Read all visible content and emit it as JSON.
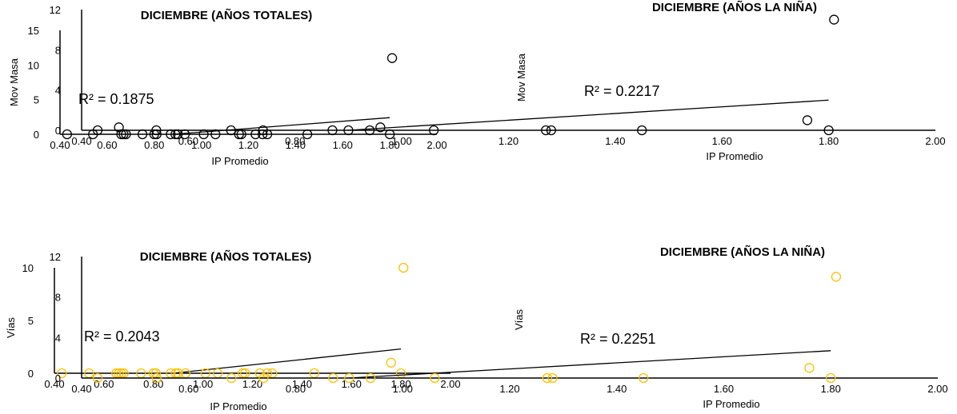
{
  "chart_data": [
    {
      "type": "scatter",
      "title": "DICIEMBRE (AÑOS TOTALES)",
      "xlabel": "IP Promedio",
      "ylabel": "Mov Masa",
      "xlim": [
        0.4,
        2.0
      ],
      "ylim": [
        0,
        15
      ],
      "xticks": [
        "0.40",
        "0.60",
        "0.80",
        "1.00",
        "1.20",
        "1.40",
        "1.60",
        "1.80",
        "2.00"
      ],
      "yticks": [
        "0",
        "5",
        "10",
        "15"
      ],
      "r2_label": "R² = 0.1875",
      "trendline": {
        "x": [
          0.88,
          1.8
        ],
        "y": [
          0.0,
          2.4
        ]
      },
      "marker_color": "#000000",
      "series": [
        {
          "x": [
            0.43,
            0.54,
            0.65,
            0.66,
            0.67,
            0.68,
            0.75,
            0.8,
            0.81,
            0.87,
            0.89,
            0.9,
            0.93,
            1.01,
            1.06,
            1.16,
            1.17,
            1.23,
            1.26,
            1.28,
            1.45,
            1.76,
            1.8,
            1.81
          ],
          "y": [
            0,
            0,
            1,
            0,
            0,
            0,
            0,
            0,
            0,
            0,
            0,
            0,
            0,
            0,
            0,
            0,
            0,
            0,
            0,
            0,
            0,
            1,
            0,
            11
          ]
        }
      ]
    },
    {
      "type": "scatter",
      "title": "DICIEMBRE (AÑOS LA NIÑA)",
      "xlabel": "IP Promedio",
      "ylabel": "Mov Masa",
      "xlim": [
        0.4,
        2.0
      ],
      "ylim": [
        0,
        12
      ],
      "xticks": [
        "0.40",
        "0.60",
        "0.80",
        "1.00",
        "1.20",
        "1.40",
        "1.60",
        "1.80",
        "2.00"
      ],
      "yticks": [
        "0",
        "4",
        "8",
        "12"
      ],
      "r2_label": "R² = 0.2217",
      "trendline": {
        "x": [
          0.9,
          1.8
        ],
        "y": [
          0.0,
          3.0
        ]
      },
      "marker_color": "#000000",
      "series": [
        {
          "x": [
            0.43,
            0.54,
            0.68,
            0.74,
            0.87,
            0.9,
            0.94,
            1.06,
            1.27,
            1.28,
            1.45,
            1.76,
            1.8,
            1.81
          ],
          "y": [
            0,
            0,
            0,
            0,
            0,
            0,
            0,
            0,
            0,
            0,
            0,
            1,
            0,
            11
          ]
        }
      ]
    },
    {
      "type": "scatter",
      "title": "DICIEMBRE (AÑOS TOTALES)",
      "xlabel": "IP Promedio",
      "ylabel": "Vías",
      "xlim": [
        0.4,
        2.0
      ],
      "ylim": [
        0,
        10
      ],
      "xticks": [
        "0.40",
        "0.60",
        "0.80",
        "1.00",
        "1.20",
        "1.40",
        "1.60",
        "1.80",
        "2.00"
      ],
      "yticks": [
        "0",
        "5",
        "10"
      ],
      "r2_label": "R² = 0.2043",
      "trendline": {
        "x": [
          0.88,
          1.8
        ],
        "y": [
          0.0,
          2.3
        ]
      },
      "marker_color": "#FFC000",
      "series": [
        {
          "x": [
            0.43,
            0.54,
            0.65,
            0.66,
            0.67,
            0.68,
            0.75,
            0.8,
            0.81,
            0.87,
            0.89,
            0.9,
            0.93,
            1.01,
            1.06,
            1.16,
            1.17,
            1.23,
            1.26,
            1.28,
            1.45,
            1.76,
            1.8,
            1.81
          ],
          "y": [
            0,
            0,
            0,
            0,
            0,
            0,
            0,
            0,
            0,
            0,
            0,
            0,
            0,
            0,
            0,
            0,
            0,
            0,
            0,
            0,
            0,
            1,
            0,
            10
          ]
        }
      ]
    },
    {
      "type": "scatter",
      "title": "DICIEMBRE (AÑOS LA NIÑA)",
      "xlabel": "IP Promedio",
      "ylabel": "Vías",
      "xlim": [
        0.4,
        2.0
      ],
      "ylim": [
        0,
        12
      ],
      "xticks": [
        "0.40",
        "0.60",
        "0.80",
        "1.00",
        "1.20",
        "1.40",
        "1.60",
        "1.80",
        "2.00"
      ],
      "yticks": [
        "0",
        "4",
        "8",
        "12"
      ],
      "r2_label": "R² = 0.2251",
      "trendline": {
        "x": [
          0.9,
          1.8
        ],
        "y": [
          0.0,
          2.7
        ]
      },
      "marker_color": "#FFC000",
      "series": [
        {
          "x": [
            0.43,
            0.54,
            0.68,
            0.74,
            0.87,
            0.9,
            0.94,
            1.06,
            1.27,
            1.28,
            1.45,
            1.76,
            1.8,
            1.81
          ],
          "y": [
            0,
            0,
            0,
            0,
            0,
            0,
            0,
            0,
            0,
            0,
            0,
            1,
            0,
            10
          ]
        }
      ]
    }
  ]
}
